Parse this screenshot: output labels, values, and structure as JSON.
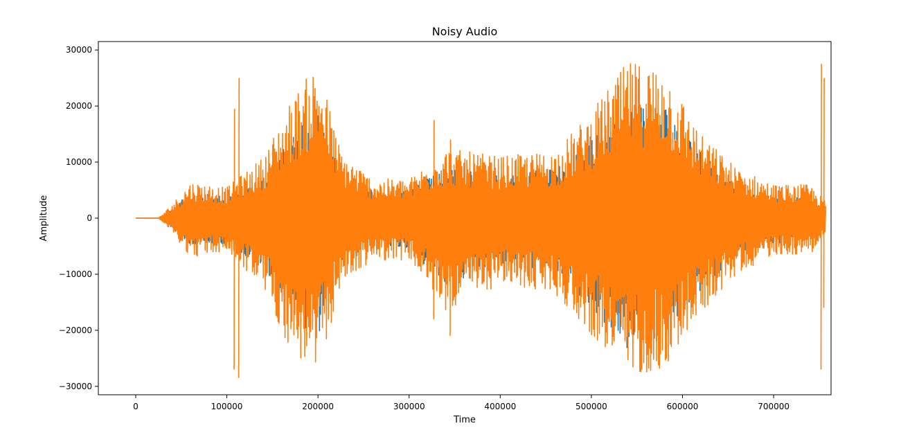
{
  "chart_data": {
    "type": "line",
    "title": "Noisy Audio",
    "xlabel": "Time",
    "ylabel": "Amplitude",
    "xlim": [
      -41000,
      763000
    ],
    "ylim": [
      -31500,
      31500
    ],
    "x_ticks": [
      0,
      100000,
      200000,
      300000,
      400000,
      500000,
      600000,
      700000
    ],
    "x_tick_labels": [
      "0",
      "100000",
      "200000",
      "300000",
      "400000",
      "500000",
      "600000",
      "700000"
    ],
    "y_ticks": [
      30000,
      20000,
      10000,
      0,
      -10000,
      -20000,
      -30000
    ],
    "y_tick_labels": [
      "30000",
      "20000",
      "10000",
      "0",
      "−10000",
      "−20000",
      "−30000"
    ],
    "grid": false,
    "legend": "none",
    "series": [
      {
        "color": "#1f77b4",
        "note_envelope": "underlying original signal, almost entirely covered",
        "envelope_x": [
          0,
          25000,
          40000,
          60000,
          100000,
          140000,
          170000,
          200000,
          225000,
          260000,
          300000,
          340000,
          400000,
          460000,
          500000,
          540000,
          580000,
          620000,
          660000,
          700000,
          740000,
          757000
        ],
        "envelope_pos": [
          0,
          0,
          1800,
          4500,
          4000,
          8000,
          14000,
          20000,
          8000,
          5000,
          5000,
          9000,
          8000,
          9000,
          14000,
          21000,
          20000,
          12000,
          6000,
          4000,
          3500,
          1500
        ],
        "envelope_neg": [
          0,
          0,
          -1800,
          -5000,
          -4500,
          -9000,
          -17000,
          -22000,
          -8000,
          -5500,
          -5500,
          -12000,
          -8500,
          -10000,
          -16000,
          -24000,
          -22000,
          -13000,
          -7000,
          -4500,
          -4000,
          -1500
        ]
      },
      {
        "color": "#ff7f0e",
        "note_envelope": "noisy signal plotted on top",
        "envelope_x": [
          0,
          25000,
          40000,
          60000,
          100000,
          140000,
          170000,
          200000,
          225000,
          260000,
          300000,
          340000,
          400000,
          460000,
          500000,
          540000,
          580000,
          620000,
          660000,
          700000,
          740000,
          757000
        ],
        "envelope_pos": [
          0,
          0,
          2500,
          6500,
          5500,
          11000,
          21000,
          28000,
          12000,
          7000,
          7000,
          12500,
          11000,
          12000,
          19000,
          28000,
          27500,
          15000,
          9000,
          6000,
          6000,
          3000
        ],
        "envelope_neg": [
          0,
          0,
          -2500,
          -7000,
          -6000,
          -12500,
          -24000,
          -28500,
          -12000,
          -7500,
          -7500,
          -16500,
          -12000,
          -13500,
          -21000,
          -28000,
          -27000,
          -17000,
          -10000,
          -6500,
          -6500,
          -3000
        ],
        "spikes": [
          {
            "x": 108000,
            "min": -27000,
            "max": 19500
          },
          {
            "x": 113000,
            "min": -28500,
            "max": 25000
          },
          {
            "x": 327000,
            "min": -18000,
            "max": 17500
          },
          {
            "x": 345000,
            "min": -21000,
            "max": 14000
          },
          {
            "x": 752000,
            "min": -27000,
            "max": 27500
          },
          {
            "x": 755000,
            "min": -16000,
            "max": 25000
          }
        ]
      }
    ]
  }
}
